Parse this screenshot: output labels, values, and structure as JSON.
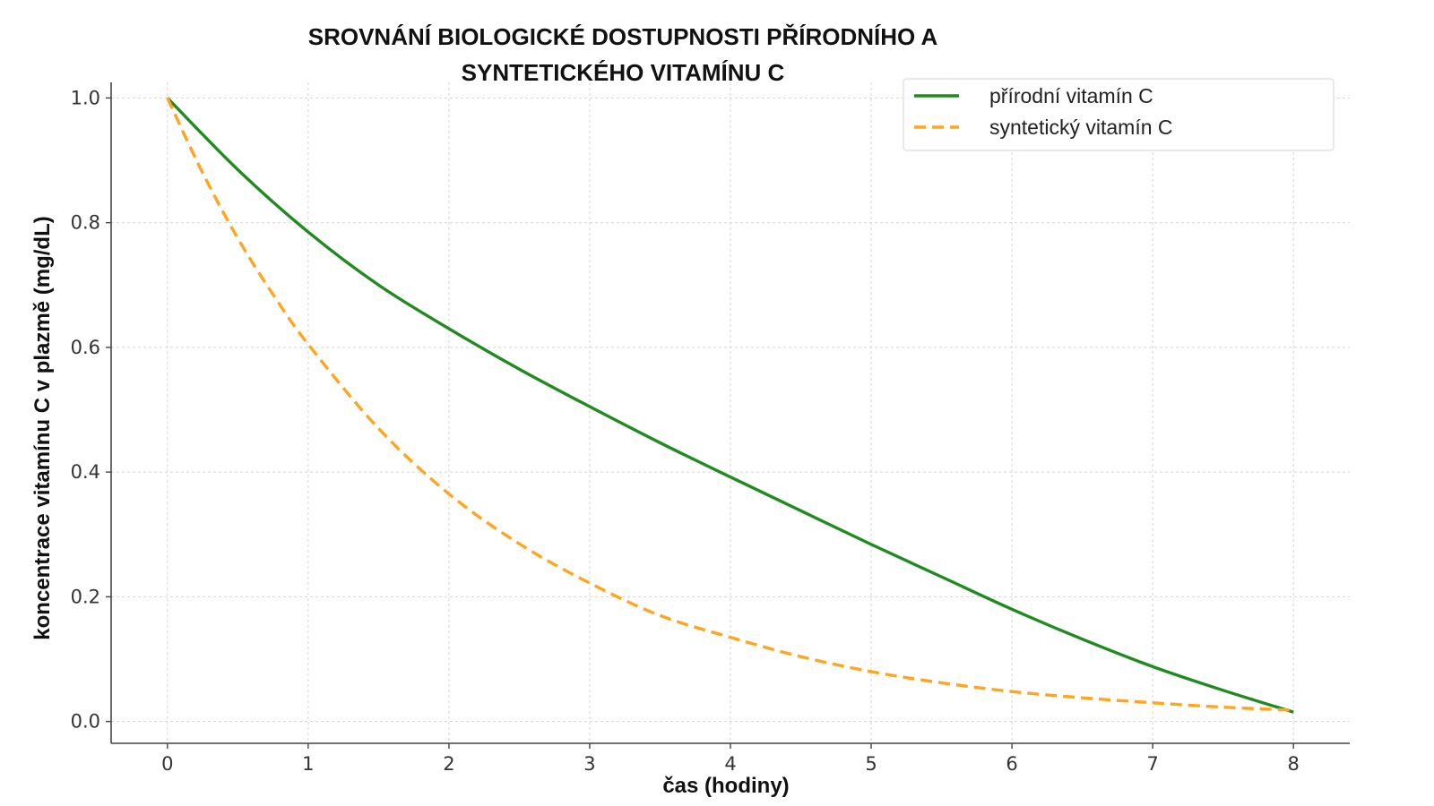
{
  "chart_data": {
    "type": "line",
    "title_lines": [
      "SROVNÁNÍ BIOLOGICKÉ DOSTUPNOSTI PŘÍRODNÍHO A",
      "SYNTETICKÉHO VITAMÍNU C"
    ],
    "xlabel": "čas (hodiny)",
    "ylabel": "koncentrace vitamínu C v plazmě (mg/dL)",
    "xlim": [
      -0.4,
      8.4
    ],
    "ylim": [
      -0.035,
      1.025
    ],
    "x_ticks": [
      0,
      1,
      2,
      3,
      4,
      5,
      6,
      7,
      8
    ],
    "x_tick_labels": [
      "0",
      "1",
      "2",
      "3",
      "4",
      "5",
      "6",
      "7",
      "8"
    ],
    "y_ticks": [
      0.0,
      0.2,
      0.4,
      0.6,
      0.8,
      1.0
    ],
    "y_tick_labels": [
      "0.0",
      "0.2",
      "0.4",
      "0.6",
      "0.8",
      "1.0"
    ],
    "grid": true,
    "legend_position": "top-right",
    "series": [
      {
        "name": "přírodní vitamín C",
        "color": "#218a21",
        "style": "solid",
        "x": [
          0,
          0.5,
          1,
          1.5,
          2,
          2.5,
          3,
          3.5,
          4,
          4.5,
          5,
          5.5,
          6,
          6.5,
          7,
          7.5,
          8
        ],
        "y": [
          1.0,
          0.885,
          0.785,
          0.7,
          0.63,
          0.565,
          0.505,
          0.447,
          0.392,
          0.338,
          0.284,
          0.232,
          0.18,
          0.132,
          0.088,
          0.05,
          0.015
        ]
      },
      {
        "name": "syntetický vitamín C",
        "color": "#ffa520",
        "style": "dashed",
        "x": [
          0,
          0.25,
          0.5,
          0.75,
          1,
          1.5,
          2,
          2.5,
          3,
          3.5,
          4,
          4.5,
          5,
          5.5,
          6,
          6.5,
          7,
          7.5,
          8
        ],
        "y": [
          1.0,
          0.88,
          0.775,
          0.685,
          0.605,
          0.47,
          0.365,
          0.285,
          0.222,
          0.17,
          0.135,
          0.104,
          0.08,
          0.062,
          0.048,
          0.038,
          0.03,
          0.023,
          0.018
        ]
      }
    ]
  }
}
